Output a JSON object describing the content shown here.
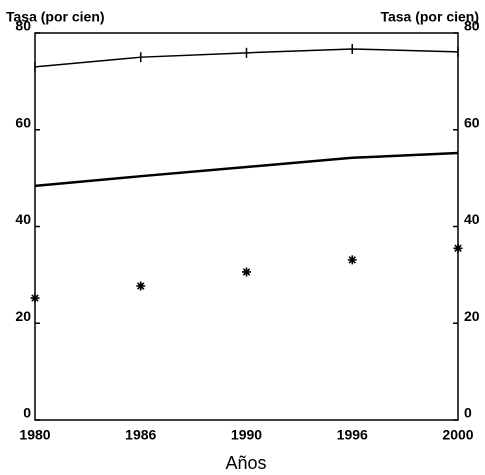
{
  "chart_data": {
    "type": "line",
    "y_label": "Tasa (por cien)",
    "y2_label": "Tasa (por cien)",
    "x_label": "Años",
    "categories": [
      "1980",
      "1986",
      "1990",
      "1996",
      "2000"
    ],
    "series": [
      {
        "color": "#000000",
        "marker": "+",
        "line": true,
        "values": [
          73,
          75,
          75.9,
          76.7,
          76.1
        ]
      },
      {
        "color": "#000000",
        "marker": "none",
        "line": true,
        "values": [
          48.4,
          50.4,
          52.3,
          54.2,
          55.2
        ]
      },
      {
        "color": "#000000",
        "marker": "*",
        "line": false,
        "values": [
          25.2,
          27.7,
          30.6,
          33.1,
          35.5
        ]
      }
    ],
    "ylim": [
      0,
      80
    ],
    "yticks": [
      0,
      20,
      40,
      60,
      80
    ],
    "y2lim": [
      0,
      80
    ],
    "y2ticks": [
      0,
      20,
      40,
      60,
      80
    ],
    "grid": false
  }
}
